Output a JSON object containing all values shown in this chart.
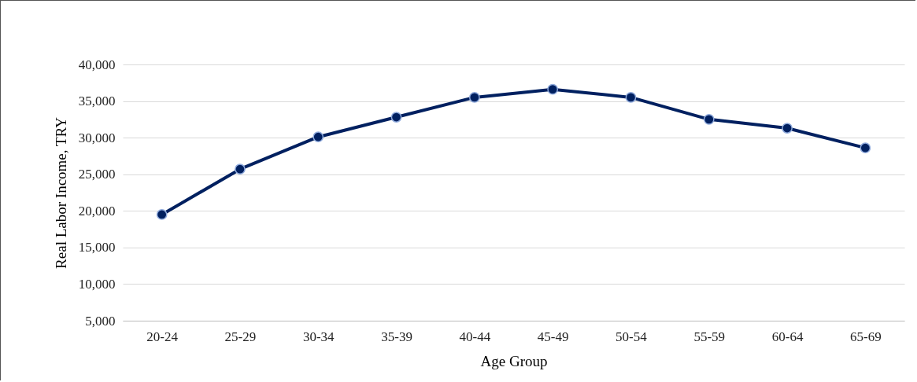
{
  "chart_data": {
    "type": "line",
    "xlabel": "Age Group",
    "ylabel": "Real Labor Income, TRY",
    "categories": [
      "20-24",
      "25-29",
      "30-34",
      "35-39",
      "40-44",
      "45-49",
      "50-54",
      "55-59",
      "60-64",
      "65-69"
    ],
    "series": [
      {
        "color": "#002060",
        "values": [
          19500,
          25700,
          30100,
          32800,
          35500,
          36600,
          35500,
          32500,
          31300,
          28600
        ]
      }
    ],
    "ylim": [
      5000,
      40000
    ],
    "yticks": [
      {
        "value": 5000,
        "label": "5,000"
      },
      {
        "value": 10000,
        "label": "10,000"
      },
      {
        "value": 15000,
        "label": "15,000"
      },
      {
        "value": 20000,
        "label": "20,000"
      },
      {
        "value": 25000,
        "label": "25,000"
      },
      {
        "value": 30000,
        "label": "30,000"
      },
      {
        "value": 35000,
        "label": "35,000"
      },
      {
        "value": 40000,
        "label": "40,000"
      }
    ],
    "grid": "y",
    "marker": "circle",
    "line_style": "solid",
    "legend": false
  }
}
